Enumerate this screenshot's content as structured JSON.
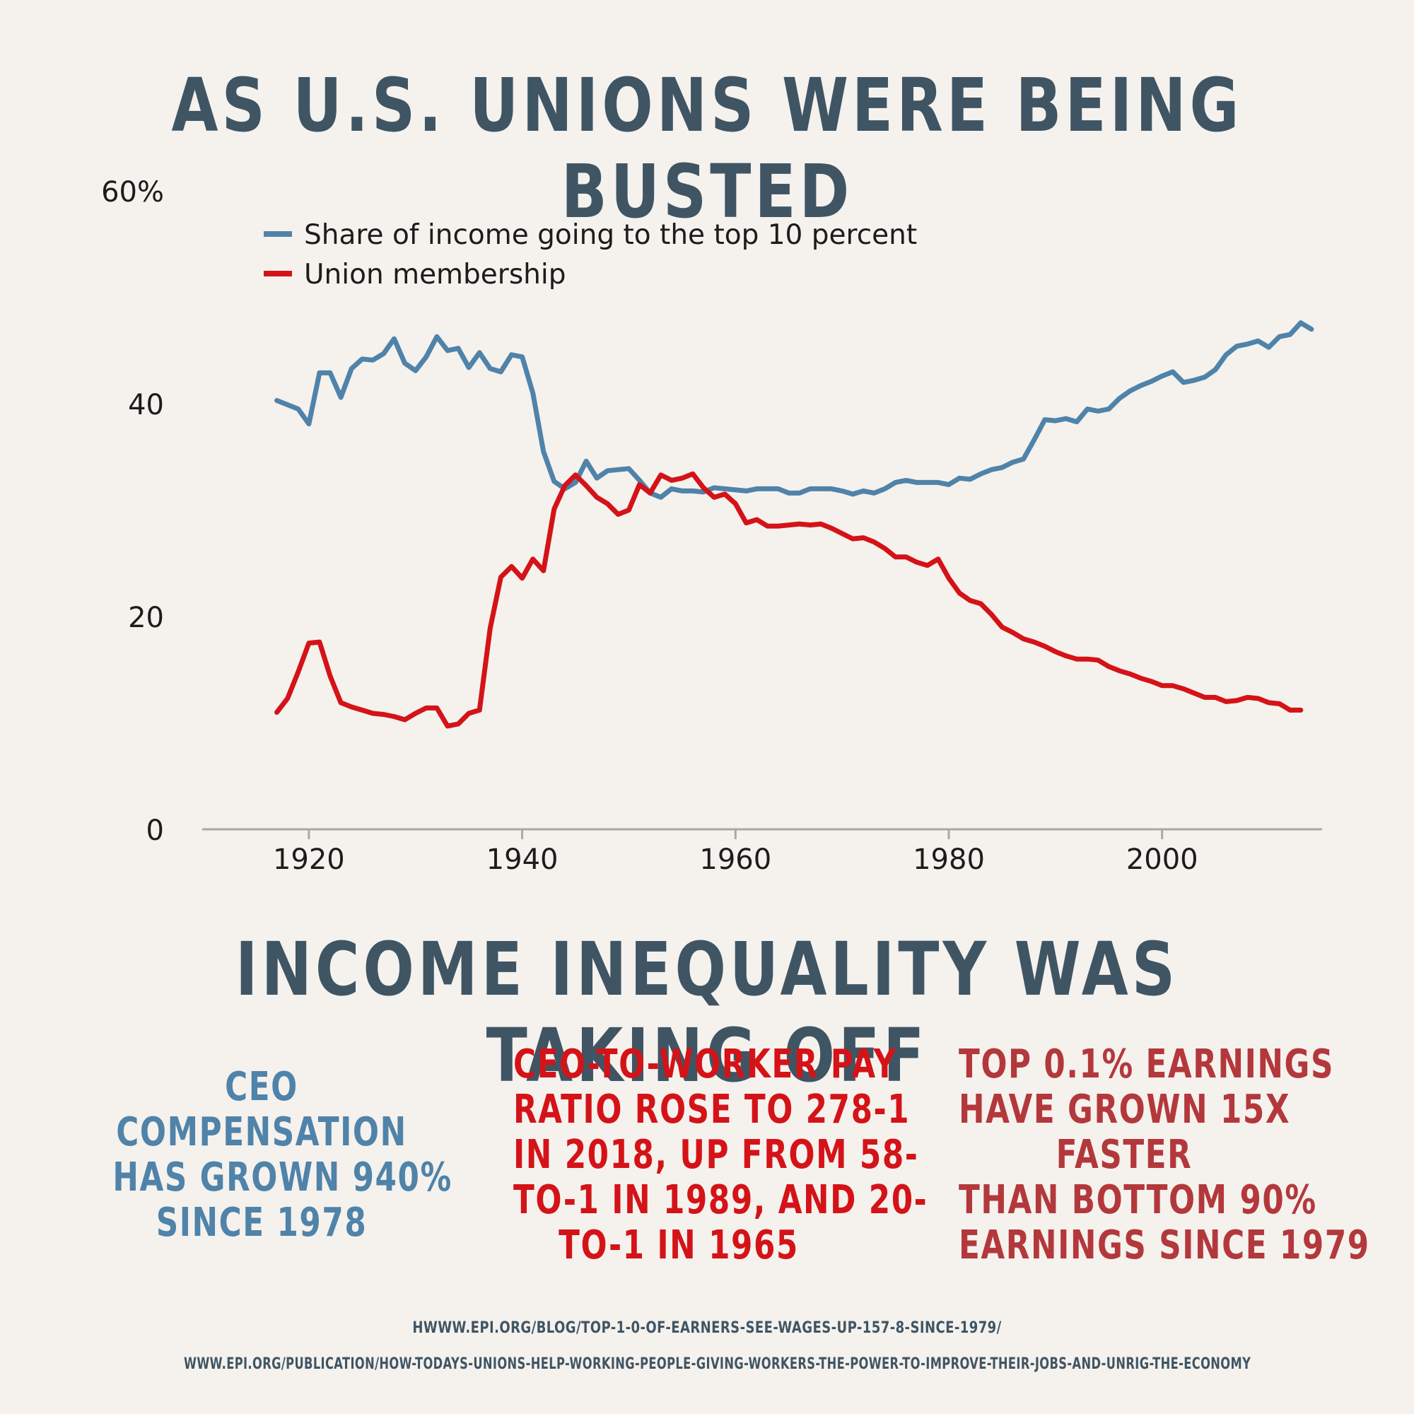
{
  "titles": {
    "top": "AS U.S. UNIONS WERE BEING BUSTED",
    "bottom": "INCOME INEQUALITY WAS TAKING OFF"
  },
  "chart_data": {
    "type": "line",
    "title": "",
    "xlabel": "",
    "ylabel": "",
    "xlim": [
      1910,
      2015
    ],
    "ylim": [
      0,
      60
    ],
    "x_ticks": [
      1920,
      1940,
      1960,
      1980,
      2000
    ],
    "y_ticks": [
      {
        "value": 0,
        "label": "0"
      },
      {
        "value": 20,
        "label": "20"
      },
      {
        "value": 40,
        "label": "40"
      },
      {
        "value": 60,
        "label": "60%"
      }
    ],
    "grid": false,
    "legend_position": "top-left",
    "series": [
      {
        "name": "Share of income going to the top 10 percent",
        "color": "#4f83a9",
        "points": [
          [
            1917,
            40.3
          ],
          [
            1918,
            39.9
          ],
          [
            1919,
            39.5
          ],
          [
            1920,
            38.1
          ],
          [
            1921,
            42.9
          ],
          [
            1922,
            42.9
          ],
          [
            1923,
            40.6
          ],
          [
            1924,
            43.3
          ],
          [
            1925,
            44.2
          ],
          [
            1926,
            44.1
          ],
          [
            1927,
            44.7
          ],
          [
            1928,
            46.1
          ],
          [
            1929,
            43.8
          ],
          [
            1930,
            43.1
          ],
          [
            1931,
            44.4
          ],
          [
            1932,
            46.3
          ],
          [
            1933,
            45.0
          ],
          [
            1934,
            45.2
          ],
          [
            1935,
            43.4
          ],
          [
            1936,
            44.8
          ],
          [
            1937,
            43.3
          ],
          [
            1938,
            43.0
          ],
          [
            1939,
            44.6
          ],
          [
            1940,
            44.4
          ],
          [
            1941,
            41.0
          ],
          [
            1942,
            35.5
          ],
          [
            1943,
            32.7
          ],
          [
            1944,
            32.0
          ],
          [
            1945,
            32.6
          ],
          [
            1946,
            34.6
          ],
          [
            1947,
            33.0
          ],
          [
            1948,
            33.7
          ],
          [
            1949,
            33.8
          ],
          [
            1950,
            33.9
          ],
          [
            1951,
            32.8
          ],
          [
            1952,
            31.6
          ],
          [
            1953,
            31.2
          ],
          [
            1954,
            32.0
          ],
          [
            1955,
            31.8
          ],
          [
            1956,
            31.8
          ],
          [
            1957,
            31.7
          ],
          [
            1958,
            32.1
          ],
          [
            1959,
            32.0
          ],
          [
            1960,
            31.9
          ],
          [
            1961,
            31.8
          ],
          [
            1962,
            32.0
          ],
          [
            1963,
            32.0
          ],
          [
            1964,
            32.0
          ],
          [
            1965,
            31.6
          ],
          [
            1966,
            31.6
          ],
          [
            1967,
            32.0
          ],
          [
            1968,
            32.0
          ],
          [
            1969,
            32.0
          ],
          [
            1970,
            31.8
          ],
          [
            1971,
            31.5
          ],
          [
            1972,
            31.8
          ],
          [
            1973,
            31.6
          ],
          [
            1974,
            32.0
          ],
          [
            1975,
            32.6
          ],
          [
            1976,
            32.8
          ],
          [
            1977,
            32.6
          ],
          [
            1978,
            32.6
          ],
          [
            1979,
            32.6
          ],
          [
            1980,
            32.4
          ],
          [
            1981,
            33.0
          ],
          [
            1982,
            32.9
          ],
          [
            1983,
            33.4
          ],
          [
            1984,
            33.8
          ],
          [
            1985,
            34.0
          ],
          [
            1986,
            34.5
          ],
          [
            1987,
            34.8
          ],
          [
            1988,
            36.6
          ],
          [
            1989,
            38.5
          ],
          [
            1990,
            38.4
          ],
          [
            1991,
            38.6
          ],
          [
            1992,
            38.3
          ],
          [
            1993,
            39.5
          ],
          [
            1994,
            39.3
          ],
          [
            1995,
            39.5
          ],
          [
            1996,
            40.5
          ],
          [
            1997,
            41.2
          ],
          [
            1998,
            41.7
          ],
          [
            1999,
            42.1
          ],
          [
            2000,
            42.6
          ],
          [
            2001,
            43.0
          ],
          [
            2002,
            42.0
          ],
          [
            2003,
            42.2
          ],
          [
            2004,
            42.5
          ],
          [
            2005,
            43.2
          ],
          [
            2006,
            44.6
          ],
          [
            2007,
            45.4
          ],
          [
            2008,
            45.6
          ],
          [
            2009,
            45.9
          ],
          [
            2010,
            45.3
          ],
          [
            2011,
            46.3
          ],
          [
            2012,
            46.5
          ],
          [
            2013,
            47.6
          ],
          [
            2014,
            47.0
          ]
        ]
      },
      {
        "name": "Union membership",
        "color": "#d41318",
        "points": [
          [
            1917,
            11.0
          ],
          [
            1918,
            12.3
          ],
          [
            1919,
            14.8
          ],
          [
            1920,
            17.5
          ],
          [
            1921,
            17.6
          ],
          [
            1922,
            14.4
          ],
          [
            1923,
            11.9
          ],
          [
            1924,
            11.5
          ],
          [
            1925,
            11.2
          ],
          [
            1926,
            10.9
          ],
          [
            1927,
            10.8
          ],
          [
            1928,
            10.6
          ],
          [
            1929,
            10.3
          ],
          [
            1930,
            10.9
          ],
          [
            1931,
            11.4
          ],
          [
            1932,
            11.4
          ],
          [
            1933,
            9.7
          ],
          [
            1934,
            9.9
          ],
          [
            1935,
            10.9
          ],
          [
            1936,
            11.2
          ],
          [
            1937,
            18.9
          ],
          [
            1938,
            23.7
          ],
          [
            1939,
            24.7
          ],
          [
            1940,
            23.6
          ],
          [
            1941,
            25.4
          ],
          [
            1942,
            24.3
          ],
          [
            1943,
            30.1
          ],
          [
            1944,
            32.3
          ],
          [
            1945,
            33.3
          ],
          [
            1946,
            32.3
          ],
          [
            1947,
            31.2
          ],
          [
            1948,
            30.6
          ],
          [
            1949,
            29.6
          ],
          [
            1950,
            30.0
          ],
          [
            1951,
            32.4
          ],
          [
            1952,
            31.6
          ],
          [
            1953,
            33.3
          ],
          [
            1954,
            32.8
          ],
          [
            1955,
            33.0
          ],
          [
            1956,
            33.4
          ],
          [
            1957,
            32.1
          ],
          [
            1958,
            31.2
          ],
          [
            1959,
            31.5
          ],
          [
            1960,
            30.6
          ],
          [
            1961,
            28.8
          ],
          [
            1962,
            29.1
          ],
          [
            1963,
            28.5
          ],
          [
            1964,
            28.5
          ],
          [
            1965,
            28.6
          ],
          [
            1966,
            28.7
          ],
          [
            1967,
            28.6
          ],
          [
            1968,
            28.7
          ],
          [
            1969,
            28.3
          ],
          [
            1970,
            27.8
          ],
          [
            1971,
            27.3
          ],
          [
            1972,
            27.4
          ],
          [
            1973,
            27.0
          ],
          [
            1974,
            26.4
          ],
          [
            1975,
            25.6
          ],
          [
            1976,
            25.6
          ],
          [
            1977,
            25.1
          ],
          [
            1978,
            24.8
          ],
          [
            1979,
            25.4
          ],
          [
            1980,
            23.6
          ],
          [
            1981,
            22.2
          ],
          [
            1982,
            21.5
          ],
          [
            1983,
            21.2
          ],
          [
            1984,
            20.2
          ],
          [
            1985,
            19.0
          ],
          [
            1986,
            18.5
          ],
          [
            1987,
            17.9
          ],
          [
            1988,
            17.6
          ],
          [
            1989,
            17.2
          ],
          [
            1990,
            16.7
          ],
          [
            1991,
            16.3
          ],
          [
            1992,
            16.0
          ],
          [
            1993,
            16.0
          ],
          [
            1994,
            15.9
          ],
          [
            1995,
            15.3
          ],
          [
            1996,
            14.9
          ],
          [
            1997,
            14.6
          ],
          [
            1998,
            14.2
          ],
          [
            1999,
            13.9
          ],
          [
            2000,
            13.5
          ],
          [
            2001,
            13.5
          ],
          [
            2002,
            13.2
          ],
          [
            2003,
            12.8
          ],
          [
            2004,
            12.4
          ],
          [
            2005,
            12.4
          ],
          [
            2006,
            12.0
          ],
          [
            2007,
            12.1
          ],
          [
            2008,
            12.4
          ],
          [
            2009,
            12.3
          ],
          [
            2010,
            11.9
          ],
          [
            2011,
            11.8
          ],
          [
            2012,
            11.2
          ],
          [
            2013,
            11.2
          ]
        ]
      }
    ]
  },
  "stats": {
    "ceo_compensation": [
      "CEO",
      "COMPENSATION",
      "HAS GROWN 940%",
      "SINCE 1978"
    ],
    "pay_ratio": [
      "CEO-TO-WORKER PAY",
      "RATIO ROSE TO 278-1",
      "IN 2018, UP FROM 58-",
      "TO-1 IN 1989, AND 20-",
      "TO-1 IN 1965"
    ],
    "top_earnings": [
      "TOP 0.1% EARNINGS",
      "HAVE GROWN 15X",
      "FASTER",
      "THAN BOTTOM 90%",
      "EARNINGS SINCE 1979"
    ]
  },
  "colors": {
    "background": "#f5f1ed",
    "headline": "#3f5564",
    "ceo_stat": "#4f83a9",
    "ratio_stat": "#d41318",
    "top_stat": "#b3383c"
  },
  "sources": [
    "HWWW.EPI.ORG/BLOG/TOP-1-0-OF-EARNERS-SEE-WAGES-UP-157-8-SINCE-1979/",
    "WWW.EPI.ORG/PUBLICATION/HOW-TODAYS-UNIONS-HELP-WORKING-PEOPLE-GIVING-WORKERS-THE-POWER-TO-IMPROVE-THEIR-JOBS-AND-UNRIG-THE-ECONOMY"
  ]
}
